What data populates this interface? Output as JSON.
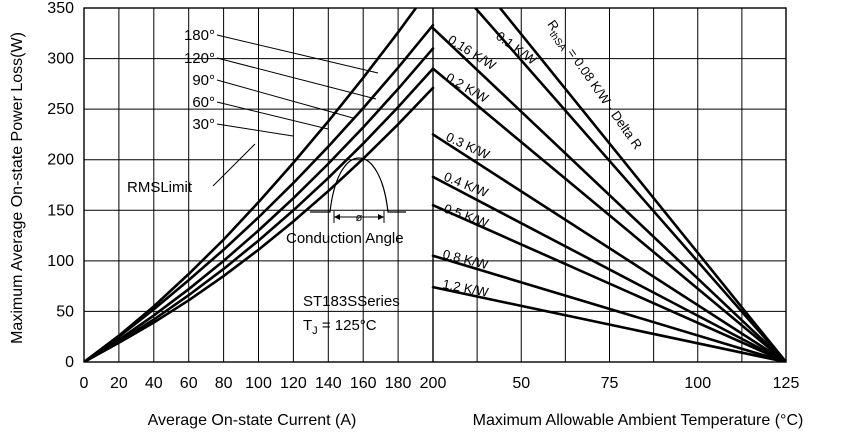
{
  "chart_data": {
    "type": "line",
    "ylabel": "Maximum Average On-state Power Loss(W)",
    "ylim": [
      0,
      350
    ],
    "y_ticks": [
      "0",
      "50",
      "100",
      "150",
      "200",
      "250",
      "300",
      "350"
    ],
    "left_panel": {
      "xlabel": "Average On-state Current (A)",
      "xlim": [
        0,
        200
      ],
      "x_ticks": [
        "0",
        "20",
        "40",
        "60",
        "80",
        "100",
        "120",
        "140",
        "160",
        "180",
        "200"
      ],
      "series": [
        {
          "name": "180°",
          "x": [
            0,
            20,
            40,
            60,
            80,
            100,
            120,
            140,
            160,
            180,
            200
          ],
          "y": [
            0,
            26,
            55,
            87,
            121,
            158,
            197,
            238,
            281,
            326,
            373
          ]
        },
        {
          "name": "120°",
          "x": [
            0,
            20,
            40,
            60,
            80,
            100,
            120,
            140,
            160,
            180,
            200
          ],
          "y": [
            0,
            25,
            52,
            81,
            111,
            143,
            177,
            213,
            251,
            291,
            333
          ]
        },
        {
          "name": "90°",
          "x": [
            0,
            20,
            40,
            60,
            80,
            100,
            120,
            140,
            160,
            180,
            200
          ],
          "y": [
            0,
            22,
            46,
            72,
            100,
            130,
            162,
            196,
            232,
            270,
            310
          ]
        },
        {
          "name": "60°",
          "x": [
            0,
            20,
            40,
            60,
            80,
            100,
            120,
            140,
            160,
            180,
            200
          ],
          "y": [
            0,
            20,
            42,
            66,
            92,
            120,
            150,
            182,
            216,
            252,
            290
          ]
        },
        {
          "name": "30°",
          "x": [
            0,
            20,
            40,
            60,
            80,
            100,
            120,
            140,
            160,
            180,
            200
          ],
          "y": [
            0,
            19,
            39,
            61,
            85,
            111,
            139,
            169,
            201,
            235,
            271
          ]
        }
      ],
      "rms_limit_label": "RMSLimit",
      "conduction_angle_label": "Conduction Angle",
      "conduction_symbol": "ø",
      "series_label": "ST183SSeries",
      "tj_label": "T",
      "tj_subscript": "J",
      "tj_value": " = 125°C"
    },
    "right_panel": {
      "xlabel": "Maximum Allowable Ambient Temperature (°C)",
      "xlim": [
        25,
        125
      ],
      "x_ticks": [
        "50",
        "75",
        "100",
        "125"
      ],
      "r_label_prefix": "R",
      "r_label_sub": "thSA",
      "r_label_text": " = 0.08 K/W - Delta R",
      "lines": [
        {
          "name": "0.08 K/W",
          "x0": 44,
          "y0": 350
        },
        {
          "name": "0.1 K/W",
          "x0": 37,
          "y0": 350
        },
        {
          "name": "0.16 K/W",
          "x0": 25,
          "y0": 330
        },
        {
          "name": "0.2 K/W",
          "x0": 25,
          "y0": 290
        },
        {
          "name": "0.3 K/W",
          "x0": 25,
          "y0": 225
        },
        {
          "name": "0.4 K/W",
          "x0": 25,
          "y0": 183
        },
        {
          "name": "0.5 K/W",
          "x0": 25,
          "y0": 155
        },
        {
          "name": "0.8 K/W",
          "x0": 25,
          "y0": 105
        },
        {
          "name": "1.2 K/W",
          "x0": 25,
          "y0": 74
        }
      ]
    }
  }
}
